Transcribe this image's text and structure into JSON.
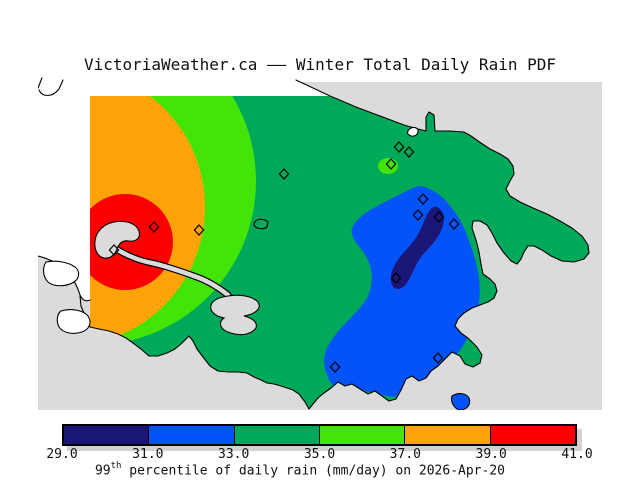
{
  "title": "VictoriaWeather.ca —— Winter Total Daily Rain PDF",
  "colorbar": {
    "ticks": [
      "29.0",
      "31.0",
      "33.0",
      "35.0",
      "37.0",
      "39.0",
      "41.0"
    ],
    "segment_colors": [
      "#1A1678",
      "#0353F8",
      "#00A95A",
      "#43E508",
      "#FFA308",
      "#FA0000"
    ],
    "caption": {
      "base": "99",
      "sup": "th",
      "rest": " percentile of daily rain (mm/day) on 2026-Apr-20"
    }
  },
  "map": {
    "region_colors": {
      "land": "#DBDBDB",
      "ocean": "#FFFFFF",
      "b29": "#1A1678",
      "b31": "#0353F8",
      "b33": "#00A95A",
      "b35": "#43E508",
      "b37": "#FFA308",
      "b39": "#FA0000"
    },
    "station_markers": [
      [
        114,
        250
      ],
      [
        154,
        227
      ],
      [
        199,
        230
      ],
      [
        284,
        174
      ],
      [
        391,
        164
      ],
      [
        399,
        147
      ],
      [
        409,
        152
      ],
      [
        423,
        199
      ],
      [
        418,
        215
      ],
      [
        439,
        217
      ],
      [
        454,
        224
      ],
      [
        396,
        278
      ],
      [
        335,
        367
      ],
      [
        438,
        358
      ]
    ]
  },
  "chart_data": {
    "type": "heatmap",
    "subtype": "filled-contour-map",
    "title": "VictoriaWeather.ca —— Winter Total Daily Rain PDF",
    "variable": "99th percentile of daily rain",
    "units": "mm/day",
    "date": "2026-Apr-20",
    "colorbar_levels": [
      29.0,
      31.0,
      33.0,
      35.0,
      37.0,
      39.0,
      41.0
    ],
    "colorbar_colors": [
      "#1A1678",
      "#0353F8",
      "#00A95A",
      "#43E508",
      "#FFA308",
      "#FA0000"
    ],
    "legend_position": "bottom",
    "notes": "Contour bands over the Greater Victoria map: red/orange maximum (39-41) in the west, green mid values (33-37) in the centre/north, blue minimum band (29-33) with a navy core (29-31) in the east; open diamonds mark station locations."
  }
}
